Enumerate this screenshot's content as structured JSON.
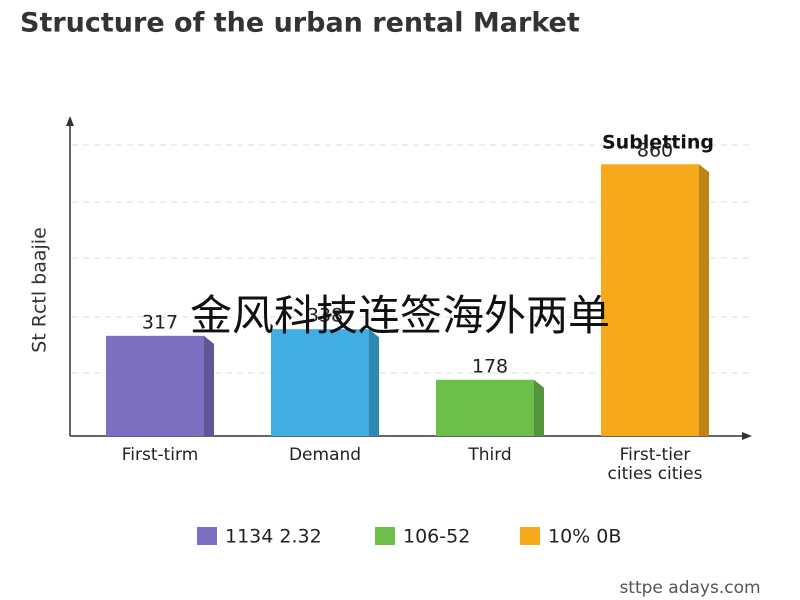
{
  "chart_data": {
    "type": "bar",
    "title": "Structure of the urban rental Market",
    "y_label": "St Rctl baajie",
    "annotation": "Subletting",
    "categories": [
      "First-tirm",
      "Demand",
      "Third",
      "First-tier cities cities"
    ],
    "values": [
      317,
      338,
      178,
      860
    ],
    "colors": [
      "#7b70c2",
      "#3eaee3",
      "#6dbf4b",
      "#f7a91c"
    ],
    "ylim": [
      0,
      1000
    ],
    "legend": [
      {
        "name": "1134 2.32",
        "color": "#7b70c2"
      },
      {
        "name": "106-52",
        "color": "#6dbf4b"
      },
      {
        "name": "10% 0B",
        "color": "#f7a91c"
      }
    ]
  },
  "overlay_text": "金风科技连签海外两单",
  "watermark": "sttpe adays.com"
}
